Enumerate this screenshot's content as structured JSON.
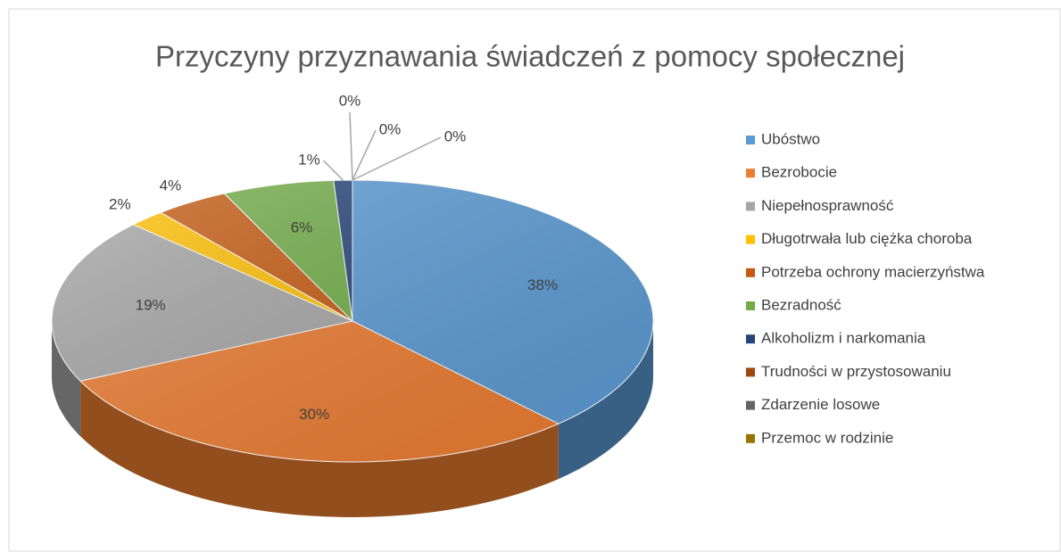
{
  "chart_data": {
    "type": "pie",
    "title": "Przyczyny przyznawania świadczeń z pomocy społecznej",
    "categories": [
      "Ubóstwo",
      "Bezrobocie",
      "Niepełnosprawność",
      "Długotrwała lub ciężka choroba",
      "Potrzeba ochrony macierzyństwa",
      "Bezradność",
      "Alkoholizm i narkomania",
      "Trudności w przystosowaniu",
      "Zdarzenie losowe",
      "Przemoc w rodzinie"
    ],
    "values": [
      38,
      30,
      19,
      2,
      4,
      6,
      1,
      0,
      0,
      0
    ],
    "value_labels": [
      "38%",
      "30%",
      "19%",
      "2%",
      "4%",
      "6%",
      "1%",
      "0%",
      "0%",
      "0%"
    ],
    "colors": [
      "#5b9bd5",
      "#ed7d31",
      "#a5a5a5",
      "#ffc000",
      "#c55a11",
      "#70ad47",
      "#264478",
      "#9e480e",
      "#636363",
      "#997300"
    ],
    "legend": "right"
  }
}
